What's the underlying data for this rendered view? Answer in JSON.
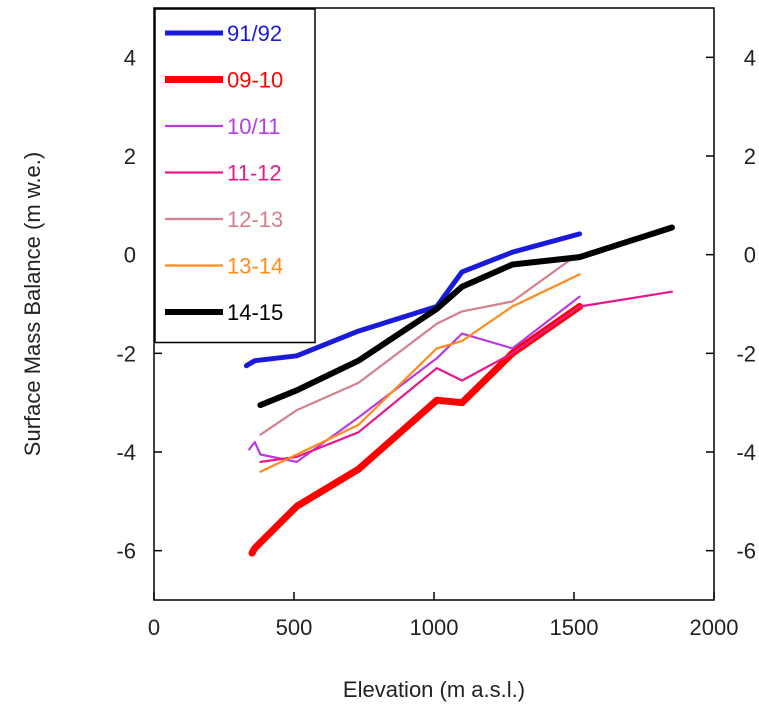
{
  "chart_data": {
    "type": "line",
    "title": "",
    "xlabel": "Elevation (m a.s.l.)",
    "ylabel": "Surface Mass Balance (m w.e.)",
    "xlim": [
      0,
      2000
    ],
    "ylim": [
      -7,
      5
    ],
    "xticks": [
      0,
      500,
      1000,
      1500,
      2000
    ],
    "yticks": [
      -6,
      -4,
      -2,
      0,
      2,
      4
    ],
    "ylabels_right": true,
    "grid": false,
    "legend_position": "top-left",
    "series": [
      {
        "name": "91/92",
        "color": "#1a1adb",
        "width": 5,
        "points": [
          [
            330,
            -2.25
          ],
          [
            360,
            -2.15
          ],
          [
            510,
            -2.05
          ],
          [
            730,
            -1.55
          ],
          [
            1010,
            -1.05
          ],
          [
            1100,
            -0.35
          ],
          [
            1280,
            0.05
          ],
          [
            1520,
            0.42
          ]
        ]
      },
      {
        "name": "09-10",
        "color": "#ff0000",
        "width": 7,
        "points": [
          [
            350,
            -6.05
          ],
          [
            360,
            -5.95
          ],
          [
            510,
            -5.1
          ],
          [
            730,
            -4.35
          ],
          [
            1010,
            -2.95
          ],
          [
            1100,
            -3.0
          ],
          [
            1280,
            -2.0
          ],
          [
            1520,
            -1.05
          ]
        ]
      },
      {
        "name": "10/11",
        "color": "#b73ce0",
        "width": 2.2,
        "points": [
          [
            340,
            -3.95
          ],
          [
            360,
            -3.8
          ],
          [
            380,
            -4.05
          ],
          [
            510,
            -4.2
          ],
          [
            730,
            -3.3
          ],
          [
            1010,
            -2.1
          ],
          [
            1100,
            -1.6
          ],
          [
            1280,
            -1.9
          ],
          [
            1520,
            -0.85
          ]
        ]
      },
      {
        "name": "11-12",
        "color": "#e8198b",
        "width": 2.2,
        "points": [
          [
            380,
            -4.2
          ],
          [
            510,
            -4.1
          ],
          [
            730,
            -3.6
          ],
          [
            1010,
            -2.3
          ],
          [
            1100,
            -2.55
          ],
          [
            1280,
            -2.0
          ],
          [
            1520,
            -1.05
          ],
          [
            1850,
            -0.75
          ]
        ]
      },
      {
        "name": "12-13",
        "color": "#d4808c",
        "width": 2.2,
        "points": [
          [
            380,
            -3.65
          ],
          [
            510,
            -3.15
          ],
          [
            730,
            -2.6
          ],
          [
            1010,
            -1.4
          ],
          [
            1100,
            -1.15
          ],
          [
            1280,
            -0.95
          ],
          [
            1500,
            -0.05
          ]
        ]
      },
      {
        "name": "13-14",
        "color": "#ff8c1a",
        "width": 2.2,
        "points": [
          [
            380,
            -4.4
          ],
          [
            510,
            -4.05
          ],
          [
            730,
            -3.45
          ],
          [
            1010,
            -1.9
          ],
          [
            1100,
            -1.75
          ],
          [
            1280,
            -1.05
          ],
          [
            1520,
            -0.4
          ]
        ]
      },
      {
        "name": "14-15",
        "color": "#000000",
        "width": 6,
        "points": [
          [
            380,
            -3.05
          ],
          [
            510,
            -2.75
          ],
          [
            730,
            -2.15
          ],
          [
            1010,
            -1.1
          ],
          [
            1100,
            -0.65
          ],
          [
            1280,
            -0.2
          ],
          [
            1520,
            -0.05
          ],
          [
            1850,
            0.55
          ]
        ]
      }
    ]
  }
}
